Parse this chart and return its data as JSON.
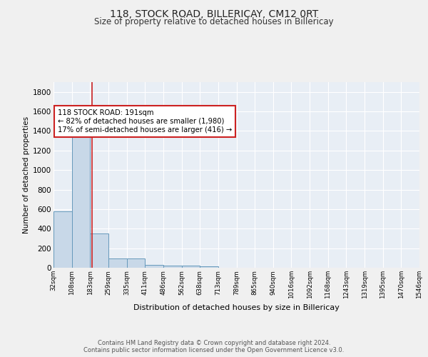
{
  "title": "118, STOCK ROAD, BILLERICAY, CM12 0RT",
  "subtitle": "Size of property relative to detached houses in Billericay",
  "xlabel": "Distribution of detached houses by size in Billericay",
  "ylabel": "Number of detached properties",
  "bar_edges": [
    32,
    108,
    183,
    259,
    335,
    411,
    486,
    562,
    638,
    713,
    789,
    865,
    940,
    1016,
    1092,
    1168,
    1243,
    1319,
    1395,
    1470,
    1546
  ],
  "bar_heights": [
    580,
    1350,
    350,
    95,
    95,
    30,
    25,
    20,
    15,
    0,
    0,
    0,
    0,
    0,
    0,
    0,
    0,
    0,
    0,
    0
  ],
  "bar_color": "#c8d8e8",
  "bar_edge_color": "#6699bb",
  "vline_x": 191,
  "vline_color": "#cc2222",
  "annotation_text": "118 STOCK ROAD: 191sqm\n← 82% of detached houses are smaller (1,980)\n17% of semi-detached houses are larger (416) →",
  "annotation_box_color": "#ffffff",
  "annotation_box_edge": "#cc2222",
  "background_color": "#e8eef5",
  "grid_color": "#ffffff",
  "footer_text": "Contains HM Land Registry data © Crown copyright and database right 2024.\nContains public sector information licensed under the Open Government Licence v3.0.",
  "ylim": [
    0,
    1900
  ],
  "yticks": [
    0,
    200,
    400,
    600,
    800,
    1000,
    1200,
    1400,
    1600,
    1800
  ],
  "tick_labels": [
    "32sqm",
    "108sqm",
    "183sqm",
    "259sqm",
    "335sqm",
    "411sqm",
    "486sqm",
    "562sqm",
    "638sqm",
    "713sqm",
    "789sqm",
    "865sqm",
    "940sqm",
    "1016sqm",
    "1092sqm",
    "1168sqm",
    "1243sqm",
    "1319sqm",
    "1395sqm",
    "1470sqm",
    "1546sqm"
  ],
  "fig_width": 6.0,
  "fig_height": 5.0
}
